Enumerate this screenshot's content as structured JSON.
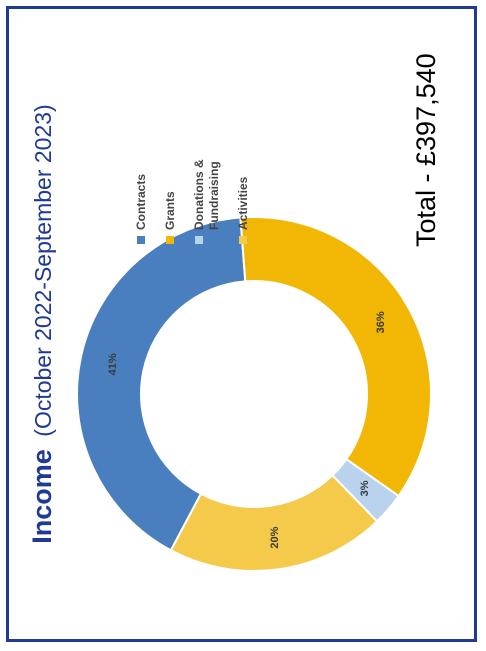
{
  "title": {
    "main": "Income",
    "sub": "(October 2022-September 2023)"
  },
  "total_label": "Total - £397,540",
  "colors": {
    "border": "#1f3a93",
    "title": "#1f3a93",
    "contracts": "#4a7fbf",
    "grants": "#f2b705",
    "donations": "#b9d3ee",
    "activities": "#f5c94a"
  },
  "chart_data": {
    "type": "pie",
    "categories": [
      "Contracts",
      "Grants",
      "Donations & Fundraising",
      "Activities"
    ],
    "values": [
      41,
      36,
      3,
      20
    ],
    "labels": [
      "41%",
      "36%",
      "3%",
      "20%"
    ],
    "donut": true,
    "legend": "right"
  }
}
